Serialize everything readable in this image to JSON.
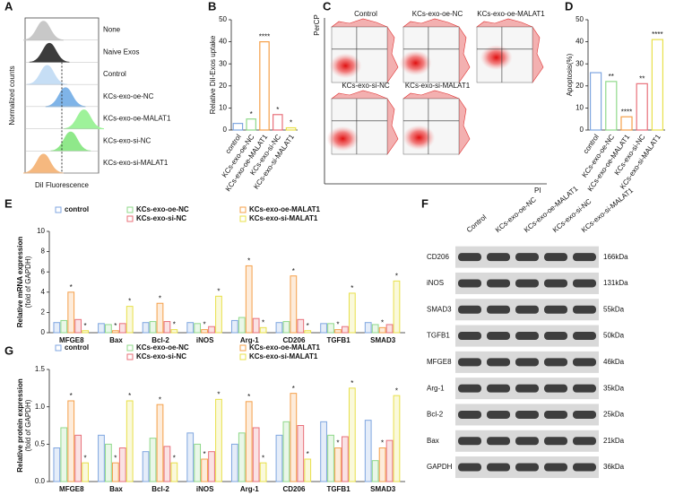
{
  "chart_data": [
    {
      "panel": "A",
      "type": "flow-histogram",
      "ylabel": "Normalized counts",
      "xlabel": "DiI Fluorescence",
      "series": [
        {
          "name": "None",
          "color": "#c8c8c8"
        },
        {
          "name": "Naive Exos",
          "color": "#3c3c3c"
        },
        {
          "name": "Control",
          "color": "#c6def5"
        },
        {
          "name": "KCs-exo-oe-NC",
          "color": "#7fb4e8"
        },
        {
          "name": "KCs-exo-oe-MALAT1",
          "color": "#9ef29a"
        },
        {
          "name": "KCs-exo-si-NC",
          "color": "#8fe88a"
        },
        {
          "name": "KCs-exo-si-MALAT1",
          "color": "#f5b87f"
        }
      ]
    },
    {
      "panel": "B",
      "type": "bar",
      "ylabel": "Relative DiI-Exos uptake",
      "categories": [
        "control",
        "KCs-exo-oe-NC",
        "KCs-exo-oe-MALAT1",
        "KCs-exo-si-NC",
        "KCs-exo-si-MALAT1"
      ],
      "values": [
        3,
        5,
        40,
        7,
        1
      ],
      "significance": [
        null,
        "*",
        "****",
        "*",
        "*"
      ],
      "colors": [
        "#7fa6e0",
        "#8fd98a",
        "#f5a04a",
        "#e8707a",
        "#e8e04a"
      ],
      "ylim": [
        0,
        50
      ],
      "yticks": [
        0,
        10,
        20,
        30,
        40,
        50
      ]
    },
    {
      "panel": "C",
      "type": "flow-dotplot",
      "ylabel": "PerCP",
      "xlabel": "PI",
      "titles": [
        "Control",
        "KCs-exo-oe-NC",
        "KCs-exo-oe-MALAT1",
        "KCs-exo-si-NC",
        "KCs-exo-si-MALAT1"
      ]
    },
    {
      "panel": "D",
      "type": "bar",
      "ylabel": "Apoptosis(%)",
      "categories": [
        "control",
        "KCs-exo-oe-NC",
        "KCs-exo-oe-MALAT1",
        "KCs-exo-si-NC",
        "KCs-exo-si-MALAT1"
      ],
      "values": [
        26,
        22,
        6,
        21,
        41
      ],
      "significance": [
        null,
        "**",
        "****",
        "**",
        "****"
      ],
      "colors": [
        "#7fa6e0",
        "#8fd98a",
        "#f5a04a",
        "#e8707a",
        "#e8e04a"
      ],
      "ylim": [
        0,
        50
      ],
      "yticks": [
        0,
        10,
        20,
        30,
        40,
        50
      ]
    },
    {
      "panel": "E",
      "type": "grouped-bar",
      "ylabel": "Relative mRNA expression",
      "ysublabel": "(fold of GAPDH)",
      "categories": [
        "MFGE8",
        "Bax",
        "Bcl-2",
        "iNOS",
        "Arg-1",
        "CD206",
        "TGFB1",
        "SMAD3"
      ],
      "series": [
        {
          "name": "control",
          "color": "#7fa6e0",
          "values": [
            1,
            0.9,
            1,
            1,
            1.2,
            1,
            0.9,
            1
          ]
        },
        {
          "name": "KCs-exo-oe-NC",
          "color": "#8fd98a",
          "values": [
            1.2,
            0.8,
            1.1,
            0.9,
            1.5,
            1.1,
            0.9,
            0.8
          ]
        },
        {
          "name": "KCs-exo-oe-MALAT1",
          "color": "#f5a04a",
          "values": [
            4,
            0.2,
            2.9,
            0.3,
            6.6,
            5.6,
            0.3,
            0.5
          ],
          "significance": [
            "*",
            "*",
            "*",
            "*",
            "*",
            "*",
            "*",
            "*"
          ]
        },
        {
          "name": "KCs-exo-si-NC",
          "color": "#e8707a",
          "values": [
            1.3,
            0.9,
            1.1,
            0.6,
            1.4,
            1.3,
            0.6,
            0.8
          ]
        },
        {
          "name": "KCs-exo-si-MALAT1",
          "color": "#e8e04a",
          "values": [
            0.2,
            2.6,
            0.3,
            3.6,
            0.5,
            0.2,
            3.9,
            5.1
          ],
          "significance": [
            "*",
            "*",
            "*",
            "*",
            "*",
            "*",
            "*",
            "*"
          ]
        }
      ],
      "ylim": [
        0,
        10
      ],
      "yticks": [
        0,
        2,
        4,
        6,
        8,
        10
      ]
    },
    {
      "panel": "F",
      "type": "western-blot",
      "lanes": [
        "Control",
        "KCs-exo-oe-NC",
        "KCs-exo-oe-MALAT1",
        "KCs-exo-si-NC",
        "KCs-exo-si-MALAT1"
      ],
      "rows": [
        {
          "protein": "CD206",
          "size": "166kDa"
        },
        {
          "protein": "iNOS",
          "size": "131kDa"
        },
        {
          "protein": "SMAD3",
          "size": "55kDa"
        },
        {
          "protein": "TGFB1",
          "size": "50kDa"
        },
        {
          "protein": "MFGE8",
          "size": "46kDa"
        },
        {
          "protein": "Arg-1",
          "size": "35kDa"
        },
        {
          "protein": "Bcl-2",
          "size": "25kDa"
        },
        {
          "protein": "Bax",
          "size": "21kDa"
        },
        {
          "protein": "GAPDH",
          "size": "36kDa"
        }
      ]
    },
    {
      "panel": "G",
      "type": "grouped-bar",
      "ylabel": "Relative protein expression",
      "ysublabel": "(fold of GAPDH)",
      "categories": [
        "MFGE8",
        "Bax",
        "Bcl-2",
        "iNOS",
        "Arg-1",
        "CD206",
        "TGFB1",
        "SMAD3"
      ],
      "series": [
        {
          "name": "control",
          "color": "#7fa6e0",
          "values": [
            0.45,
            0.62,
            0.4,
            0.65,
            0.5,
            0.62,
            0.8,
            0.82
          ]
        },
        {
          "name": "KCs-exo-oe-NC",
          "color": "#8fd98a",
          "values": [
            0.72,
            0.5,
            0.58,
            0.5,
            0.65,
            0.8,
            0.62,
            0.28
          ]
        },
        {
          "name": "KCs-exo-oe-MALAT1",
          "color": "#f5a04a",
          "values": [
            1.08,
            0.25,
            1.03,
            0.3,
            1.07,
            1.18,
            0.45,
            0.45
          ],
          "significance": [
            "*",
            "*",
            "*",
            "*",
            "*",
            "*",
            "*",
            "*"
          ]
        },
        {
          "name": "KCs-exo-si-NC",
          "color": "#e8707a",
          "values": [
            0.62,
            0.45,
            0.47,
            0.4,
            0.72,
            0.75,
            0.6,
            0.55
          ]
        },
        {
          "name": "KCs-exo-si-MALAT1",
          "color": "#e8e04a",
          "values": [
            0.25,
            1.08,
            0.25,
            1.1,
            0.25,
            0.3,
            1.25,
            1.15
          ],
          "significance": [
            "*",
            "*",
            "*",
            "*",
            "*",
            "*",
            "*",
            "*"
          ]
        }
      ],
      "ylim": [
        0,
        1.5
      ],
      "yticks": [
        {
          "value": 0,
          "label": "0.0"
        },
        0.5,
        {
          "value": 1,
          "label": "1.0"
        },
        1.5
      ]
    }
  ]
}
